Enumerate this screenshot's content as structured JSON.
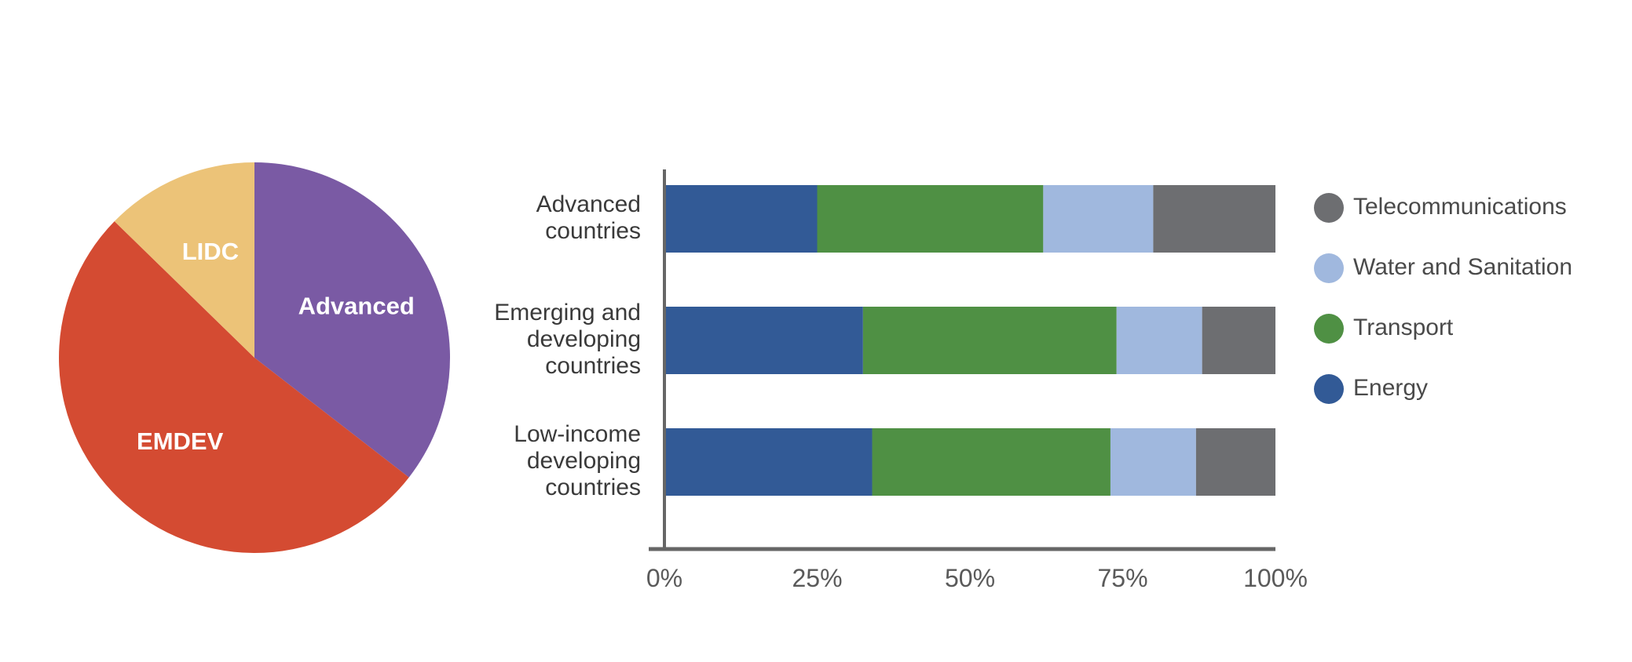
{
  "chart_data": [
    {
      "type": "pie",
      "slices": [
        {
          "label": "Advanced",
          "value": 35.5,
          "color": "#7a5aa4"
        },
        {
          "label": "EMDEV",
          "value": 51.8,
          "color": "#d44b32"
        },
        {
          "label": "LIDC",
          "value": 12.7,
          "color": "#ecc378"
        }
      ]
    },
    {
      "type": "bar",
      "orientation": "horizontal",
      "stacked": "percent",
      "categories": [
        [
          "Advanced",
          "countries"
        ],
        [
          "Emerging and",
          "developing",
          "countries"
        ],
        [
          "Low-income",
          "developing",
          "countries"
        ]
      ],
      "series": [
        {
          "name": "Energy",
          "color": "#325a96",
          "values": [
            25,
            32.5,
            34
          ]
        },
        {
          "name": "Transport",
          "color": "#4f9044",
          "values": [
            37,
            41.5,
            39
          ]
        },
        {
          "name": "Water and Sanitation",
          "color": "#a0b8de",
          "values": [
            18,
            14,
            14
          ]
        },
        {
          "name": "Telecommunications",
          "color": "#6d6e71",
          "values": [
            20,
            12,
            13
          ]
        }
      ],
      "x_ticks": [
        "0%",
        "25%",
        "50%",
        "75%",
        "100%"
      ],
      "xlim": [
        0,
        100
      ],
      "legend_order": [
        "Telecommunications",
        "Water and Sanitation",
        "Transport",
        "Energy"
      ],
      "legend_position": "right"
    }
  ]
}
